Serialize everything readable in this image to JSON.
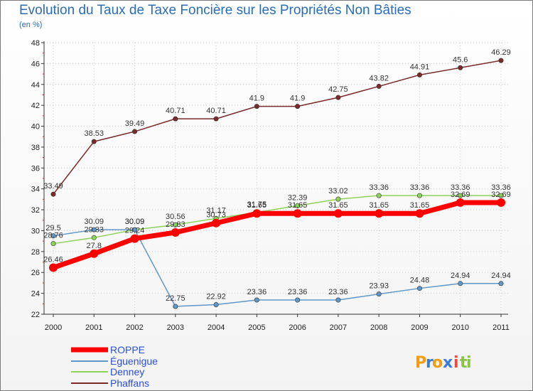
{
  "chart_data": {
    "type": "line",
    "title": "Evolution du Taux de Taxe Foncière sur les Propriétés Non Bâties",
    "subtitle": "(en %)",
    "x": [
      "2000",
      "2001",
      "2002",
      "2003",
      "2004",
      "2005",
      "2006",
      "2007",
      "2008",
      "2009",
      "2010",
      "2011"
    ],
    "ylim": [
      22,
      48
    ],
    "yticks": [
      22,
      24,
      26,
      28,
      30,
      32,
      34,
      36,
      38,
      40,
      42,
      44,
      46,
      48
    ],
    "series": [
      {
        "name": "ROPPE",
        "color": "#ff0000",
        "values": [
          26.46,
          27.8,
          29.24,
          29.83,
          30.73,
          31.65,
          31.65,
          31.65,
          31.65,
          31.65,
          32.69,
          32.69
        ],
        "labels": [
          "26.46",
          "27.8",
          "29.24",
          "29.83",
          "30.73",
          "31.65",
          "31.65",
          "31.65",
          "31.65",
          "31.65",
          "32.69",
          "32.69"
        ]
      },
      {
        "name": "Éguenigue",
        "color": "#5f98c8",
        "values": [
          29.5,
          30.09,
          30.09,
          22.75,
          22.92,
          23.36,
          23.36,
          23.36,
          23.93,
          24.48,
          24.94,
          24.94
        ],
        "labels": [
          "29.5",
          "30.09",
          "30.09",
          "22.75",
          "22.92",
          "23.36",
          "23.36",
          "23.36",
          "23.93",
          "24.48",
          "24.94",
          "24.94"
        ]
      },
      {
        "name": "Denney",
        "color": "#8ed45a",
        "values": [
          28.76,
          29.33,
          30.09,
          30.56,
          31.17,
          31.75,
          32.39,
          33.02,
          33.36,
          33.36,
          33.36,
          33.36
        ],
        "labels": [
          "28.76",
          "29.33",
          "30.09",
          "30.56",
          "31.17",
          "31.75",
          "32.39",
          "33.02",
          "33.36",
          "33.36",
          "33.36",
          "33.36"
        ]
      },
      {
        "name": "Phaffans",
        "color": "#7b2a2a",
        "values": [
          33.49,
          38.53,
          39.49,
          40.71,
          40.71,
          41.9,
          41.9,
          42.75,
          43.82,
          44.91,
          45.6,
          46.29
        ],
        "labels": [
          "33.49",
          "38.53",
          "39.49",
          "40.71",
          "40.71",
          "41.9",
          "41.9",
          "42.75",
          "43.82",
          "44.91",
          "45.6",
          "46.29"
        ]
      }
    ]
  },
  "brand": {
    "letters": [
      "P",
      "r",
      "o",
      "x",
      "i",
      "t",
      "i"
    ],
    "colors": [
      "#f39c12",
      "#3a7bd5",
      "#f39c12",
      "#3a7bd5",
      "#e74c3c",
      "#8bc34a",
      "#8bc34a"
    ]
  }
}
